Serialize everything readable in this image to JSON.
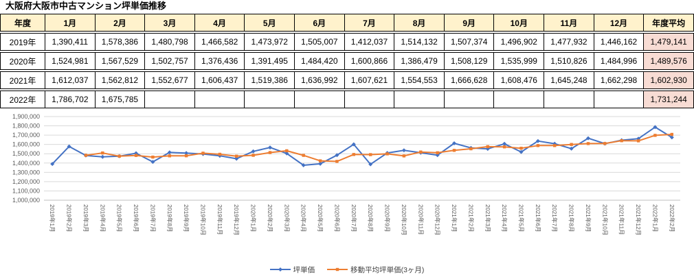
{
  "title": "大阪府大阪市中古マンション坪単価推移",
  "table": {
    "headers": [
      "年度",
      "1月",
      "2月",
      "3月",
      "4月",
      "5月",
      "6月",
      "7月",
      "8月",
      "9月",
      "10月",
      "11月",
      "12月",
      "年度平均"
    ],
    "rows": [
      {
        "year": "2019年",
        "values": [
          "1,390,411",
          "1,578,386",
          "1,480,798",
          "1,466,582",
          "1,473,972",
          "1,505,007",
          "1,412,037",
          "1,514,132",
          "1,507,374",
          "1,496,902",
          "1,477,932",
          "1,446,162"
        ],
        "average": "1,479,141"
      },
      {
        "year": "2020年",
        "values": [
          "1,524,981",
          "1,567,529",
          "1,502,757",
          "1,376,436",
          "1,391,495",
          "1,484,420",
          "1,600,866",
          "1,386,479",
          "1,508,129",
          "1,535,999",
          "1,510,826",
          "1,484,996"
        ],
        "average": "1,489,576"
      },
      {
        "year": "2021年",
        "values": [
          "1,612,037",
          "1,562,812",
          "1,552,677",
          "1,606,437",
          "1,519,386",
          "1,636,992",
          "1,607,621",
          "1,554,553",
          "1,666,628",
          "1,608,476",
          "1,645,248",
          "1,662,298"
        ],
        "average": "1,602,930"
      },
      {
        "year": "2022年",
        "values": [
          "1,786,702",
          "1,675,785",
          "",
          "",
          "",
          "",
          "",
          "",
          "",
          "",
          "",
          " "
        ],
        "average": "1,731,244"
      }
    ],
    "colors": {
      "header_bg": "#FFF2CC",
      "average_bg": "#F8DCD4",
      "border": "#000000"
    }
  },
  "chart_data": {
    "type": "line",
    "x": [
      "2019年1月",
      "2019年2月",
      "2019年3月",
      "2019年4月",
      "2019年5月",
      "2019年6月",
      "2019年7月",
      "2019年8月",
      "2019年9月",
      "2019年10月",
      "2019年11月",
      "2019年12月",
      "2020年1月",
      "2020年2月",
      "2020年3月",
      "2020年4月",
      "2020年5月",
      "2020年6月",
      "2020年7月",
      "2020年8月",
      "2020年9月",
      "2020年10月",
      "2020年11月",
      "2020年12月",
      "2021年1月",
      "2021年2月",
      "2021年3月",
      "2021年4月",
      "2021年5月",
      "2021年6月",
      "2021年7月",
      "2021年8月",
      "2021年9月",
      "2021年10月",
      "2021年11月",
      "2021年12月",
      "2022年1月",
      "2022年2月"
    ],
    "series": [
      {
        "name": "坪単価",
        "color": "#4472C4",
        "marker": "diamond",
        "values": [
          1390411,
          1578386,
          1480798,
          1466582,
          1473972,
          1505007,
          1412037,
          1514132,
          1507374,
          1496902,
          1477932,
          1446162,
          1524981,
          1567529,
          1502757,
          1376436,
          1391495,
          1484420,
          1600866,
          1386479,
          1508129,
          1535999,
          1510826,
          1484996,
          1612037,
          1562812,
          1552677,
          1606437,
          1519386,
          1636992,
          1607621,
          1554553,
          1666628,
          1608476,
          1645248,
          1662298,
          1786702,
          1675785
        ]
      },
      {
        "name": "移動平均坪単価(3ヶ月)",
        "color": "#ED7D31",
        "marker": "square",
        "values": [
          null,
          null,
          1483198,
          1508589,
          1473784,
          1481854,
          1463672,
          1477059,
          1477848,
          1506136,
          1494069,
          1473665,
          1483025,
          1512891,
          1531756,
          1482241,
          1423563,
          1417450,
          1492260,
          1490588,
          1498491,
          1476869,
          1518318,
          1510607,
          1535953,
          1553282,
          1575842,
          1573975,
          1559500,
          1587605,
          1588000,
          1599722,
          1609601,
          1609886,
          1640117,
          1638674,
          1698083,
          1708262
        ]
      }
    ],
    "ylim": [
      1000000,
      1900000
    ],
    "ytick_step": 100000,
    "ytick_labels": [
      "1,000,000",
      "1,100,000",
      "1,200,000",
      "1,300,000",
      "1,400,000",
      "1,500,000",
      "1,600,000",
      "1,700,000",
      "1,800,000",
      "1,900,000"
    ],
    "grid": true,
    "legend_position": "bottom",
    "gridline_color": "#D9D9D9",
    "axis_color": "#BFBFBF"
  }
}
